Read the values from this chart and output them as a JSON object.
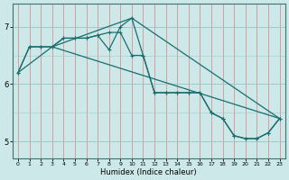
{
  "xlabel": "Humidex (Indice chaleur)",
  "bg_color": "#cce8e8",
  "grid_color_v": "#e08080",
  "grid_color_h": "#a0c8c8",
  "line_color": "#1a6e6e",
  "ylim": [
    4.7,
    7.4
  ],
  "xlim": [
    -0.5,
    23.5
  ],
  "yticks": [
    5,
    6,
    7
  ],
  "xticks": [
    0,
    1,
    2,
    3,
    4,
    5,
    6,
    7,
    8,
    9,
    10,
    11,
    12,
    13,
    14,
    15,
    16,
    17,
    18,
    19,
    20,
    21,
    22,
    23
  ],
  "line1_x": [
    0,
    1,
    2,
    3,
    4,
    5,
    6,
    7,
    8,
    9,
    10,
    11,
    12,
    13,
    14,
    15,
    16,
    17,
    18,
    19,
    20,
    21,
    22,
    23
  ],
  "line1_y": [
    6.2,
    6.65,
    6.65,
    6.65,
    6.8,
    6.8,
    6.8,
    6.85,
    6.6,
    7.0,
    7.15,
    6.5,
    5.85,
    5.85,
    5.85,
    5.85,
    5.85,
    5.5,
    5.4,
    5.1,
    5.05,
    5.05,
    5.15,
    5.4
  ],
  "line2_x": [
    0,
    1,
    2,
    3,
    4,
    5,
    6,
    7,
    8,
    9,
    10,
    11,
    12,
    13,
    14,
    15,
    16,
    17,
    18,
    19,
    20,
    21,
    22,
    23
  ],
  "line2_y": [
    6.2,
    6.65,
    6.65,
    6.65,
    6.8,
    6.8,
    6.8,
    6.85,
    6.9,
    6.9,
    6.5,
    6.5,
    5.85,
    5.85,
    5.85,
    5.85,
    5.85,
    5.5,
    5.4,
    5.1,
    5.05,
    5.05,
    5.15,
    5.4
  ],
  "line3_x": [
    0,
    3,
    23
  ],
  "line3_y": [
    6.2,
    6.65,
    5.4
  ],
  "line4_x": [
    3,
    10,
    23
  ],
  "line4_y": [
    6.65,
    7.15,
    5.4
  ]
}
